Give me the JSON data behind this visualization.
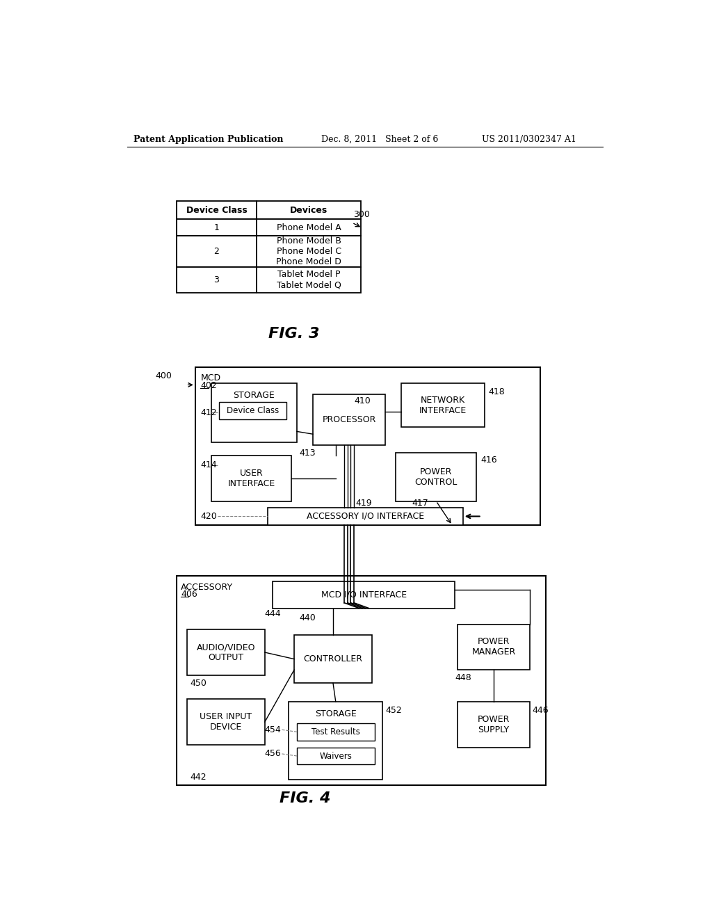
{
  "header_left": "Patent Application Publication",
  "header_mid": "Dec. 8, 2011   Sheet 2 of 6",
  "header_right": "US 2011/0302347 A1",
  "fig3_caption": "FIG. 3",
  "fig4_caption": "FIG. 4",
  "table_headers": [
    "Device Class",
    "Devices"
  ],
  "table_ref": "300",
  "mcd_label": "MCD",
  "mcd_ref": "402",
  "mcd_ref_num": "400",
  "storage_label": "STORAGE",
  "storage_ref": "412",
  "device_class_label": "Device Class",
  "network_label": "NETWORK\nINTERFACE",
  "network_ref": "418",
  "processor_label": "PROCESSOR",
  "processor_ref": "410",
  "processor_conn_ref": "413",
  "user_interface_label": "USER\nINTERFACE",
  "user_interface_ref": "414",
  "power_control_label": "POWER\nCONTROL",
  "power_control_ref": "416",
  "power_control_conn_ref": "417",
  "accessory_io_label": "ACCESSORY I/O INTERFACE",
  "accessory_io_ref": "420",
  "accessory_io_conn_ref": "419",
  "accessory_label": "ACCESSORY",
  "accessory_ref": "406",
  "mcd_io_label": "MCD I/O INTERFACE",
  "mcd_io_ref": "444",
  "audio_video_label": "AUDIO/VIDEO\nOUTPUT",
  "audio_video_ref": "450",
  "controller_label": "CONTROLLER",
  "controller_ref": "440",
  "power_manager_label": "POWER\nMANAGER",
  "power_manager_ref": "448",
  "user_input_label": "USER INPUT\nDEVICE",
  "user_input_ref": "442",
  "storage2_label": "STORAGE",
  "storage2_ref": "452",
  "test_results_label": "Test Results",
  "test_results_ref": "454",
  "waivers_label": "Waivers",
  "waivers_ref": "456",
  "power_supply_label": "POWER\nSUPPLY",
  "power_supply_ref": "446",
  "bg_color": "#ffffff"
}
